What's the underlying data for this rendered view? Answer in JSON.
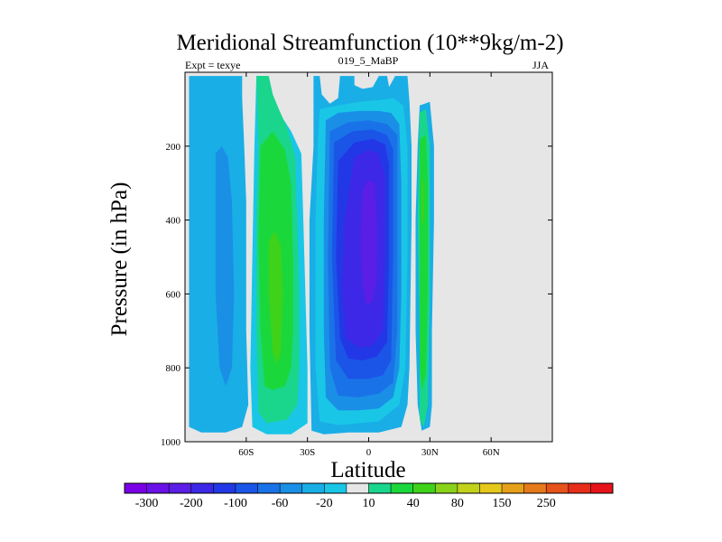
{
  "chart_data": {
    "type": "contour",
    "title": "Meridional Streamfunction (10**9kg/m-2)",
    "left_label": "Expt = texye",
    "center_label": "019_5_MaBP",
    "right_label": "JJA",
    "xlabel": "Latitude",
    "ylabel": "Pressure (in hPa)",
    "xlim": [
      -90,
      90
    ],
    "ylim": [
      1000,
      0
    ],
    "x_ticks": [
      {
        "value": -60,
        "label": "60S"
      },
      {
        "value": -30,
        "label": "30S"
      },
      {
        "value": 0,
        "label": "0"
      },
      {
        "value": 30,
        "label": "30N"
      },
      {
        "value": 60,
        "label": "60N"
      }
    ],
    "y_ticks": [
      {
        "value": 200,
        "label": "200"
      },
      {
        "value": 400,
        "label": "400"
      },
      {
        "value": 600,
        "label": "600"
      },
      {
        "value": 800,
        "label": "800"
      },
      {
        "value": 1000,
        "label": "1000"
      }
    ],
    "missing_color": "#e6e6e6",
    "colorbar": {
      "colors": [
        "#7a00e6",
        "#6a10e8",
        "#5a1ee6",
        "#3c28e6",
        "#2238e6",
        "#1a55e8",
        "#1a72e8",
        "#1a8fe6",
        "#19aee6",
        "#19c6e6",
        "#e6e6e6",
        "#19d68c",
        "#1ad83c",
        "#3ed21a",
        "#8ad21a",
        "#c2d21a",
        "#e6c81a",
        "#e6a01a",
        "#e67a1a",
        "#e6521a",
        "#e62e1a",
        "#e6141a"
      ],
      "labels": [
        {
          "boundary": 1,
          "text": "-300"
        },
        {
          "boundary": 3,
          "text": "-200"
        },
        {
          "boundary": 5,
          "text": "-100"
        },
        {
          "boundary": 7,
          "text": "-60"
        },
        {
          "boundary": 9,
          "text": "-20"
        },
        {
          "boundary": 11,
          "text": "10"
        },
        {
          "boundary": 13,
          "text": "40"
        },
        {
          "boundary": 15,
          "text": "80"
        },
        {
          "boundary": 17,
          "text": "150"
        },
        {
          "boundary": 19,
          "text": "250"
        }
      ]
    },
    "regions": [
      {
        "color": "#19aee6",
        "polygon": [
          [
            -88,
            10
          ],
          [
            -62,
            10
          ],
          [
            -62,
            70
          ],
          [
            -61,
            200
          ],
          [
            -60,
            350
          ],
          [
            -60,
            700
          ],
          [
            -59,
            900
          ],
          [
            -62,
            960
          ],
          [
            -70,
            975
          ],
          [
            -82,
            975
          ],
          [
            -88,
            960
          ]
        ]
      },
      {
        "color": "#1a8fe6",
        "polygon": [
          [
            -75,
            220
          ],
          [
            -72,
            200
          ],
          [
            -69,
            230
          ],
          [
            -67,
            350
          ],
          [
            -66,
            600
          ],
          [
            -67,
            800
          ],
          [
            -70,
            850
          ],
          [
            -73,
            800
          ],
          [
            -75,
            600
          ]
        ]
      },
      {
        "color": "#19c6e6",
        "polygon": [
          [
            -55,
            10
          ],
          [
            -49,
            10
          ],
          [
            -47,
            60
          ],
          [
            -45,
            100
          ],
          [
            -38,
            160
          ],
          [
            -33,
            220
          ],
          [
            -32,
            400
          ],
          [
            -31,
            600
          ],
          [
            -30,
            800
          ],
          [
            -30,
            950
          ],
          [
            -38,
            980
          ],
          [
            -50,
            980
          ],
          [
            -57,
            960
          ],
          [
            -58,
            800
          ],
          [
            -57,
            500
          ],
          [
            -56,
            200
          ]
        ]
      },
      {
        "color": "#19d68c",
        "polygon": [
          [
            -55,
            10
          ],
          [
            -49,
            10
          ],
          [
            -47,
            60
          ],
          [
            -44,
            100
          ],
          [
            -40,
            150
          ],
          [
            -36,
            230
          ],
          [
            -35,
            400
          ],
          [
            -34,
            600
          ],
          [
            -34,
            800
          ],
          [
            -35,
            900
          ],
          [
            -40,
            940
          ],
          [
            -50,
            950
          ],
          [
            -54,
            920
          ],
          [
            -55,
            700
          ],
          [
            -55,
            400
          ],
          [
            -54,
            200
          ]
        ]
      },
      {
        "color": "#1ad83c",
        "polygon": [
          [
            -53,
            200
          ],
          [
            -47,
            160
          ],
          [
            -41,
            210
          ],
          [
            -38,
            300
          ],
          [
            -37,
            500
          ],
          [
            -37,
            700
          ],
          [
            -38,
            800
          ],
          [
            -41,
            850
          ],
          [
            -47,
            860
          ],
          [
            -51,
            850
          ],
          [
            -53,
            700
          ],
          [
            -54,
            450
          ]
        ]
      },
      {
        "color": "#3ed21a",
        "polygon": [
          [
            -49,
            460
          ],
          [
            -46,
            430
          ],
          [
            -43,
            470
          ],
          [
            -42,
            600
          ],
          [
            -43,
            760
          ],
          [
            -45,
            790
          ],
          [
            -47,
            760
          ],
          [
            -49,
            600
          ]
        ]
      },
      {
        "color": "#19aee6",
        "polygon": [
          [
            -27,
            10
          ],
          [
            -24,
            10
          ],
          [
            -23,
            60
          ],
          [
            -19,
            85
          ],
          [
            -15,
            70
          ],
          [
            -14,
            10
          ],
          [
            -7,
            10
          ],
          [
            -7,
            35
          ],
          [
            -3,
            45
          ],
          [
            2,
            40
          ],
          [
            5,
            10
          ],
          [
            9,
            10
          ],
          [
            10,
            40
          ],
          [
            13,
            10
          ],
          [
            19,
            10
          ],
          [
            20,
            80
          ],
          [
            21,
            200
          ],
          [
            21,
            400
          ],
          [
            20,
            800
          ],
          [
            19,
            900
          ],
          [
            16,
            960
          ],
          [
            5,
            975
          ],
          [
            -10,
            975
          ],
          [
            -22,
            980
          ],
          [
            -28,
            970
          ],
          [
            -29,
            700
          ],
          [
            -29,
            400
          ],
          [
            -27,
            200
          ]
        ]
      },
      {
        "color": "#19c6e6",
        "polygon": [
          [
            -24,
            100
          ],
          [
            -20,
            95
          ],
          [
            -15,
            90
          ],
          [
            -5,
            80
          ],
          [
            5,
            75
          ],
          [
            12,
            70
          ],
          [
            17,
            90
          ],
          [
            19,
            200
          ],
          [
            19,
            500
          ],
          [
            18,
            800
          ],
          [
            15,
            900
          ],
          [
            5,
            945
          ],
          [
            -5,
            950
          ],
          [
            -15,
            955
          ],
          [
            -24,
            945
          ],
          [
            -26,
            800
          ],
          [
            -26,
            400
          ],
          [
            -25,
            200
          ]
        ]
      },
      {
        "color": "#1a8fe6",
        "polygon": [
          [
            -21,
            130
          ],
          [
            -15,
            110
          ],
          [
            -5,
            105
          ],
          [
            5,
            105
          ],
          [
            11,
            110
          ],
          [
            15,
            140
          ],
          [
            16,
            300
          ],
          [
            16,
            600
          ],
          [
            15,
            800
          ],
          [
            12,
            880
          ],
          [
            5,
            910
          ],
          [
            -5,
            915
          ],
          [
            -15,
            915
          ],
          [
            -21,
            880
          ],
          [
            -22,
            700
          ],
          [
            -22,
            400
          ]
        ]
      },
      {
        "color": "#1a72e8",
        "polygon": [
          [
            -19,
            160
          ],
          [
            -10,
            135
          ],
          [
            0,
            130
          ],
          [
            9,
            140
          ],
          [
            14,
            170
          ],
          [
            14,
            400
          ],
          [
            14,
            700
          ],
          [
            12,
            840
          ],
          [
            5,
            870
          ],
          [
            -5,
            880
          ],
          [
            -15,
            875
          ],
          [
            -19,
            800
          ],
          [
            -20,
            500
          ]
        ]
      },
      {
        "color": "#1a55e8",
        "polygon": [
          [
            -17,
            190
          ],
          [
            -8,
            160
          ],
          [
            2,
            155
          ],
          [
            9,
            170
          ],
          [
            12,
            210
          ],
          [
            12,
            500
          ],
          [
            11,
            780
          ],
          [
            7,
            820
          ],
          [
            0,
            830
          ],
          [
            -10,
            830
          ],
          [
            -16,
            780
          ],
          [
            -18,
            500
          ]
        ]
      },
      {
        "color": "#2238e6",
        "polygon": [
          [
            -15,
            240
          ],
          [
            -7,
            190
          ],
          [
            2,
            180
          ],
          [
            8,
            195
          ],
          [
            10,
            250
          ],
          [
            10,
            500
          ],
          [
            9,
            730
          ],
          [
            4,
            770
          ],
          [
            -3,
            780
          ],
          [
            -10,
            775
          ],
          [
            -14,
            720
          ],
          [
            -16,
            500
          ]
        ]
      },
      {
        "color": "#3c28e6",
        "polygon": [
          [
            -12,
            400
          ],
          [
            -7,
            230
          ],
          [
            0,
            210
          ],
          [
            5,
            220
          ],
          [
            8,
            280
          ],
          [
            8,
            500
          ],
          [
            7,
            700
          ],
          [
            2,
            740
          ],
          [
            -5,
            745
          ],
          [
            -11,
            720
          ],
          [
            -13,
            600
          ]
        ]
      },
      {
        "color": "#5a1ee6",
        "polygon": [
          [
            -3,
            320
          ],
          [
            0,
            290
          ],
          [
            3,
            300
          ],
          [
            4,
            400
          ],
          [
            4,
            560
          ],
          [
            2,
            620
          ],
          [
            -1,
            630
          ],
          [
            -3,
            580
          ],
          [
            -4,
            450
          ]
        ]
      },
      {
        "color": "#19aee6",
        "polygon": [
          [
            25,
            90
          ],
          [
            30,
            80
          ],
          [
            32,
            200
          ],
          [
            32,
            400
          ],
          [
            31,
            700
          ],
          [
            31,
            900
          ],
          [
            30,
            960
          ],
          [
            26,
            970
          ],
          [
            24,
            900
          ],
          [
            23,
            700
          ],
          [
            23,
            400
          ],
          [
            24,
            200
          ]
        ]
      },
      {
        "color": "#19d68c",
        "polygon": [
          [
            25,
            110
          ],
          [
            28,
            100
          ],
          [
            30,
            200
          ],
          [
            30,
            600
          ],
          [
            29,
            900
          ],
          [
            27,
            960
          ],
          [
            25,
            940
          ],
          [
            25,
            700
          ],
          [
            24,
            400
          ]
        ]
      },
      {
        "color": "#1ad83c",
        "polygon": [
          [
            25,
            180
          ],
          [
            28,
            170
          ],
          [
            29,
            300
          ],
          [
            29,
            600
          ],
          [
            28,
            820
          ],
          [
            26,
            860
          ],
          [
            25,
            800
          ],
          [
            25,
            500
          ]
        ]
      },
      {
        "color": "#3ed21a",
        "polygon": [
          [
            26,
            300
          ],
          [
            27,
            290
          ],
          [
            27,
            400
          ],
          [
            26,
            420
          ],
          [
            26,
            380
          ]
        ]
      }
    ]
  }
}
